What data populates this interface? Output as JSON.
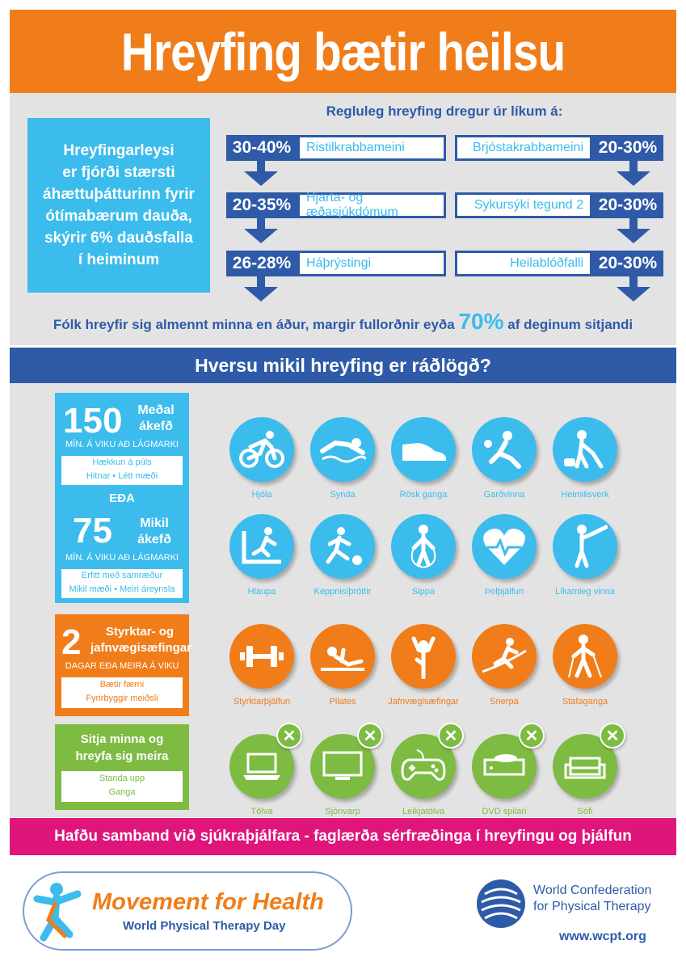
{
  "header": {
    "title": "Hreyfing bætir heilsu"
  },
  "callout": {
    "lines": [
      "Hreyfingarleysi",
      "er fjórði stærsti",
      "áhættuþátturinn fyrir",
      "ótímabærum dauða,",
      "skýrir 6% dauðsfalla",
      "í heiminum"
    ]
  },
  "subtitle": "Regluleg hreyfing dregur úr líkum á:",
  "stats": [
    {
      "pct": "30-40%",
      "label": "Ristilkrabbameini"
    },
    {
      "pct": "20-30%",
      "label": "Brjóstakrabbameini"
    },
    {
      "pct": "20-35%",
      "label": "Hjarta- og æðasjúkdómum"
    },
    {
      "pct": "20-30%",
      "label": "Sykursýki tegund 2"
    },
    {
      "pct": "26-28%",
      "label": "Háþrýstingi"
    },
    {
      "pct": "20-30%",
      "label": "Heilablóðfalli"
    }
  ],
  "sitting": {
    "before": "Fólk hreyfir sig almennt minna en áður, margir fullorðnir eyða ",
    "big": "70%",
    "after": " af deginum sitjandi"
  },
  "rec_bar": "Hversu mikil hreyfing er ráðlögð?",
  "rec": {
    "moderate": {
      "num": "150",
      "line1": "Meðal",
      "line2": "ákefð",
      "min": "MÍN. Á VIKU AÐ LÁGMARKI",
      "detail1": "Hækkun á púls",
      "detail2": "Hitnar  •  Létt mæði"
    },
    "or": "EÐA",
    "vigorous": {
      "num": "75",
      "line1": "Mikil",
      "line2": "ákefð",
      "min": "MÍN. Á VIKU AÐ LÁGMARKI",
      "detail1": "Erfitt með samræður",
      "detail2": "Mikil mæði  •  Meiri áreynsla"
    },
    "strength": {
      "num": "2",
      "line1": "Styrktar- og",
      "line2": "jafnvægisæfingar",
      "days": "DAGAR EÐA MEIRA Á VIKU",
      "detail1": "Bætir færni",
      "detail2": "Fyrirbyggir meiðsli"
    },
    "sit": {
      "line1": "Sitja minna og",
      "line2": "hreyfa sig meira",
      "detail1": "Standa upp",
      "detail2": "Ganga"
    }
  },
  "icons_row1": [
    {
      "label": "Hjóla",
      "icon": "bicycle-icon"
    },
    {
      "label": "Synda",
      "icon": "swim-icon"
    },
    {
      "label": "Rösk ganga",
      "icon": "shoe-icon"
    },
    {
      "label": "Garðvinna",
      "icon": "gardening-icon"
    },
    {
      "label": "Heimilisverk",
      "icon": "vacuum-icon"
    }
  ],
  "icons_row2": [
    {
      "label": "Hlaupa",
      "icon": "treadmill-icon"
    },
    {
      "label": "Keppnisíþróttir",
      "icon": "football-icon"
    },
    {
      "label": "Sippa",
      "icon": "jump-rope-icon"
    },
    {
      "label": "Þolþjálfun",
      "icon": "heart-icon"
    },
    {
      "label": "Líkamleg vinna",
      "icon": "golf-icon"
    }
  ],
  "icons_row3": [
    {
      "label": "Styrktarþjálfun",
      "icon": "barbell-icon"
    },
    {
      "label": "Pilates",
      "icon": "pilates-icon"
    },
    {
      "label": "Jafnvægisæfingar",
      "icon": "balance-icon"
    },
    {
      "label": "Snerpa",
      "icon": "agility-icon"
    },
    {
      "label": "Stafaganga",
      "icon": "nordic-walk-icon"
    }
  ],
  "icons_row4": [
    {
      "label": "Tölva",
      "icon": "laptop-icon"
    },
    {
      "label": "Sjónvarp",
      "icon": "tv-icon"
    },
    {
      "label": "Leikjatölva",
      "icon": "gamepad-icon"
    },
    {
      "label": "DVD spilari",
      "icon": "dvd-icon"
    },
    {
      "label": "Sófi",
      "icon": "sofa-icon"
    }
  ],
  "pink_bar": "Hafðu samband við sjúkraþjálfara - faglærða sérfræðinga í hreyfingu og þjálfun",
  "footer": {
    "mfh": "Movement for Health",
    "wptd": "World Physical Therapy Day",
    "wcpt_line1": "World Confederation",
    "wcpt_line2": "for Physical Therapy",
    "url": "www.wcpt.org"
  },
  "colors": {
    "orange": "#f07d1a",
    "blue": "#2e5aa8",
    "cyan": "#3bbced",
    "green": "#7dbb42",
    "pink": "#e0157c",
    "gray": "#e3e3e4"
  }
}
